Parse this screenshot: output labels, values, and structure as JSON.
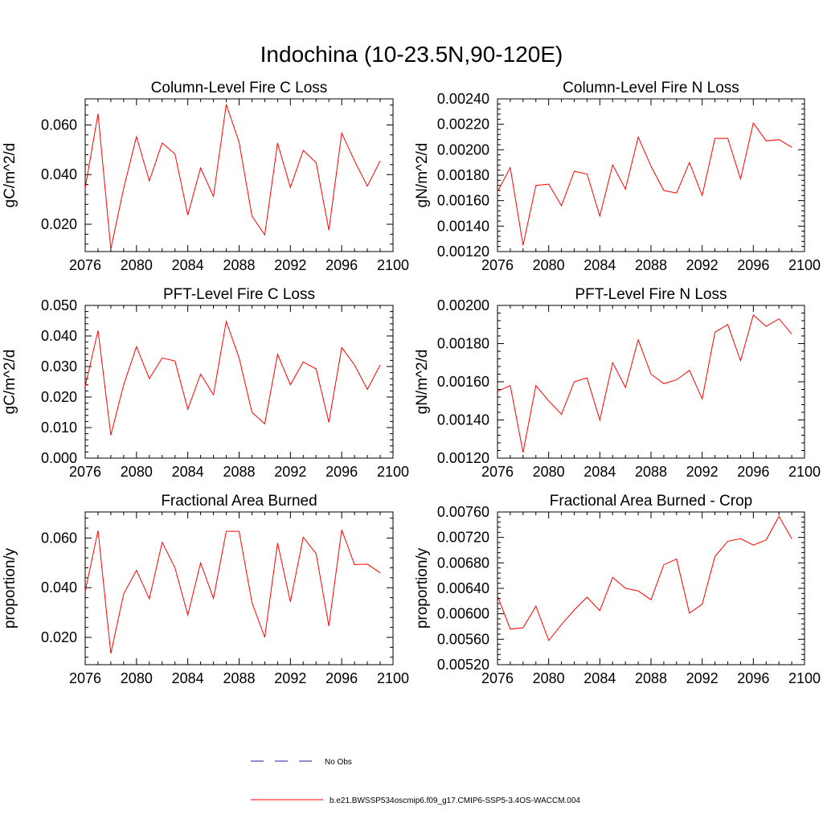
{
  "figure": {
    "title": "Indochina (10-23.5N,90-120E)",
    "legend": [
      {
        "label": "No Obs",
        "color": "#1f1fa0",
        "style": "dashed"
      },
      {
        "label": "b.e21.BWSSP534oscmip6.f09_g17.CMIP6-SSP5-3.4OS-WACCM.004",
        "color": "#ff0000",
        "style": "solid"
      }
    ]
  },
  "chart_data": [
    {
      "type": "line",
      "title": "Column-Level Fire C Loss",
      "xlabel": "",
      "ylabel": "gC/m^2/d",
      "xlim": [
        2076,
        2100
      ],
      "ylim": [
        0.009,
        0.0705
      ],
      "xticks": [
        "2076",
        "2080",
        "2084",
        "2088",
        "2092",
        "2096",
        "2100"
      ],
      "yticks": [
        "0.020",
        "0.040",
        "0.060"
      ],
      "grid": false,
      "series": [
        {
          "color": "#ff0000",
          "x": [
            2076,
            2077,
            2078,
            2079,
            2080,
            2081,
            2082,
            2083,
            2084,
            2085,
            2086,
            2087,
            2088,
            2089,
            2090,
            2091,
            2092,
            2093,
            2094,
            2095,
            2096,
            2097,
            2098,
            2099
          ],
          "values": [
            0.0345,
            0.0645,
            0.01,
            0.0345,
            0.0553,
            0.0375,
            0.0527,
            0.0483,
            0.0237,
            0.0427,
            0.0312,
            0.0683,
            0.053,
            0.0233,
            0.0157,
            0.0527,
            0.0348,
            0.0498,
            0.0448,
            0.0176,
            0.0567,
            0.0455,
            0.0353,
            0.0455
          ]
        }
      ]
    },
    {
      "type": "line",
      "title": "Column-Level Fire N Loss",
      "xlabel": "",
      "ylabel": "gN/m^2/d",
      "xlim": [
        2076,
        2100
      ],
      "ylim": [
        0.0012,
        0.0024
      ],
      "xticks": [
        "2076",
        "2080",
        "2084",
        "2088",
        "2092",
        "2096",
        "2100"
      ],
      "yticks": [
        "0.00120",
        "0.00140",
        "0.00160",
        "0.00180",
        "0.00200",
        "0.00220",
        "0.00240"
      ],
      "grid": false,
      "series": [
        {
          "color": "#ff0000",
          "x": [
            2076,
            2077,
            2078,
            2079,
            2080,
            2081,
            2082,
            2083,
            2084,
            2085,
            2086,
            2087,
            2088,
            2089,
            2090,
            2091,
            2092,
            2093,
            2094,
            2095,
            2096,
            2097,
            2098,
            2099
          ],
          "values": [
            0.00167,
            0.00186,
            0.00125,
            0.00172,
            0.00173,
            0.00156,
            0.00183,
            0.00181,
            0.00148,
            0.00188,
            0.00169,
            0.0021,
            0.00187,
            0.00168,
            0.00166,
            0.0019,
            0.00164,
            0.00209,
            0.00209,
            0.00177,
            0.00221,
            0.00207,
            0.00208,
            0.00202
          ]
        }
      ]
    },
    {
      "type": "line",
      "title": "PFT-Level Fire C Loss",
      "xlabel": "",
      "ylabel": "gC/m^2/d",
      "xlim": [
        2076,
        2100
      ],
      "ylim": [
        0.0,
        0.05
      ],
      "xticks": [
        "2076",
        "2080",
        "2084",
        "2088",
        "2092",
        "2096",
        "2100"
      ],
      "yticks": [
        "0.000",
        "0.010",
        "0.020",
        "0.030",
        "0.040",
        "0.050"
      ],
      "grid": false,
      "series": [
        {
          "color": "#ff0000",
          "x": [
            2076,
            2077,
            2078,
            2079,
            2080,
            2081,
            2082,
            2083,
            2084,
            2085,
            2086,
            2087,
            2088,
            2089,
            2090,
            2091,
            2092,
            2093,
            2094,
            2095,
            2096,
            2097,
            2098,
            2099
          ],
          "values": [
            0.0235,
            0.0418,
            0.0075,
            0.024,
            0.0365,
            0.026,
            0.0328,
            0.0318,
            0.016,
            0.0275,
            0.0207,
            0.0448,
            0.0328,
            0.015,
            0.0112,
            0.034,
            0.024,
            0.0315,
            0.0292,
            0.0117,
            0.0362,
            0.0305,
            0.0225,
            0.0305
          ]
        }
      ]
    },
    {
      "type": "line",
      "title": "PFT-Level Fire N Loss",
      "xlabel": "",
      "ylabel": "gN/m^2/d",
      "xlim": [
        2076,
        2100
      ],
      "ylim": [
        0.0012,
        0.002
      ],
      "xticks": [
        "2076",
        "2080",
        "2084",
        "2088",
        "2092",
        "2096",
        "2100"
      ],
      "yticks": [
        "0.00120",
        "0.00140",
        "0.00160",
        "0.00180",
        "0.00200"
      ],
      "grid": false,
      "series": [
        {
          "color": "#ff0000",
          "x": [
            2076,
            2077,
            2078,
            2079,
            2080,
            2081,
            2082,
            2083,
            2084,
            2085,
            2086,
            2087,
            2088,
            2089,
            2090,
            2091,
            2092,
            2093,
            2094,
            2095,
            2096,
            2097,
            2098,
            2099
          ],
          "values": [
            0.00155,
            0.00158,
            0.00123,
            0.00158,
            0.0015,
            0.00143,
            0.0016,
            0.00162,
            0.0014,
            0.0017,
            0.00157,
            0.00182,
            0.00164,
            0.00159,
            0.00161,
            0.00166,
            0.00151,
            0.00186,
            0.0019,
            0.00171,
            0.00195,
            0.00189,
            0.00193,
            0.00185
          ]
        }
      ]
    },
    {
      "type": "line",
      "title": "Fractional Area Burned",
      "xlabel": "",
      "ylabel": "proportion/y",
      "xlim": [
        2076,
        2100
      ],
      "ylim": [
        0.009,
        0.0705
      ],
      "xticks": [
        "2076",
        "2080",
        "2084",
        "2088",
        "2092",
        "2096",
        "2100"
      ],
      "yticks": [
        "0.020",
        "0.040",
        "0.060"
      ],
      "grid": false,
      "series": [
        {
          "color": "#ff0000",
          "x": [
            2076,
            2077,
            2078,
            2079,
            2080,
            2081,
            2082,
            2083,
            2084,
            2085,
            2086,
            2087,
            2088,
            2089,
            2090,
            2091,
            2092,
            2093,
            2094,
            2095,
            2096,
            2097,
            2098,
            2099
          ],
          "values": [
            0.0385,
            0.063,
            0.0135,
            0.0375,
            0.047,
            0.0355,
            0.0583,
            0.048,
            0.029,
            0.05,
            0.0357,
            0.0627,
            0.0627,
            0.034,
            0.02,
            0.058,
            0.0343,
            0.0603,
            0.0537,
            0.0245,
            0.0633,
            0.0493,
            0.0495,
            0.046
          ]
        }
      ]
    },
    {
      "type": "line",
      "title": "Fractional Area Burned - Crop",
      "xlabel": "",
      "ylabel": "proportion/y",
      "xlim": [
        2076,
        2100
      ],
      "ylim": [
        0.0052,
        0.0076
      ],
      "xticks": [
        "2076",
        "2080",
        "2084",
        "2088",
        "2092",
        "2096",
        "2100"
      ],
      "yticks": [
        "0.00520",
        "0.00560",
        "0.00600",
        "0.00640",
        "0.00680",
        "0.00720",
        "0.00760"
      ],
      "grid": false,
      "series": [
        {
          "color": "#ff0000",
          "x": [
            2076,
            2077,
            2078,
            2079,
            2080,
            2081,
            2082,
            2083,
            2084,
            2085,
            2086,
            2087,
            2088,
            2089,
            2090,
            2091,
            2092,
            2093,
            2094,
            2095,
            2096,
            2097,
            2098,
            2099
          ],
          "values": [
            0.00628,
            0.00576,
            0.00578,
            0.00612,
            0.00558,
            0.00583,
            0.00606,
            0.00626,
            0.00605,
            0.00657,
            0.0064,
            0.00636,
            0.00622,
            0.00677,
            0.00686,
            0.00601,
            0.00615,
            0.0069,
            0.00714,
            0.00718,
            0.00708,
            0.00716,
            0.00753,
            0.00718
          ]
        }
      ]
    }
  ]
}
